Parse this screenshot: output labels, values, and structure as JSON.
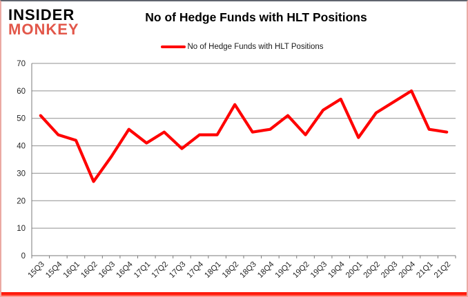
{
  "logo": {
    "line1": "INSIDER",
    "line2": "MONKEY"
  },
  "title": "No of Hedge Funds with HLT Positions",
  "legend": {
    "label": "No of Hedge Funds with HLT Positions"
  },
  "colors": {
    "line": "#FF0000",
    "grid": "#8f8f8f",
    "axis": "#7a7a7a",
    "logo_insider": "#000000",
    "logo_monkey": "#e2574a",
    "tick_text": "#262626"
  },
  "chart_data": {
    "type": "line",
    "title": "No of Hedge Funds with HLT Positions",
    "series_name": "No of Hedge Funds with HLT Positions",
    "categories": [
      "15Q3",
      "15Q4",
      "16Q1",
      "16Q2",
      "16Q3",
      "16Q4",
      "17Q1",
      "17Q2",
      "17Q3",
      "17Q4",
      "18Q1",
      "18Q2",
      "18Q3",
      "18Q4",
      "19Q1",
      "19Q2",
      "19Q3",
      "19Q4",
      "20Q1",
      "20Q2",
      "20Q3",
      "20Q4",
      "21Q1",
      "21Q2"
    ],
    "values": [
      51,
      44,
      42,
      27,
      36,
      46,
      41,
      45,
      39,
      44,
      44,
      55,
      45,
      46,
      51,
      44,
      53,
      57,
      43,
      52,
      56,
      60,
      46,
      45
    ],
    "xlabel": "",
    "ylabel": "",
    "ylim": [
      0,
      70
    ],
    "ytick_step": 10,
    "grid": true,
    "legend_position": "top",
    "line_color": "#FF0000",
    "line_width": 4.2,
    "x_label_rotation": -45
  }
}
